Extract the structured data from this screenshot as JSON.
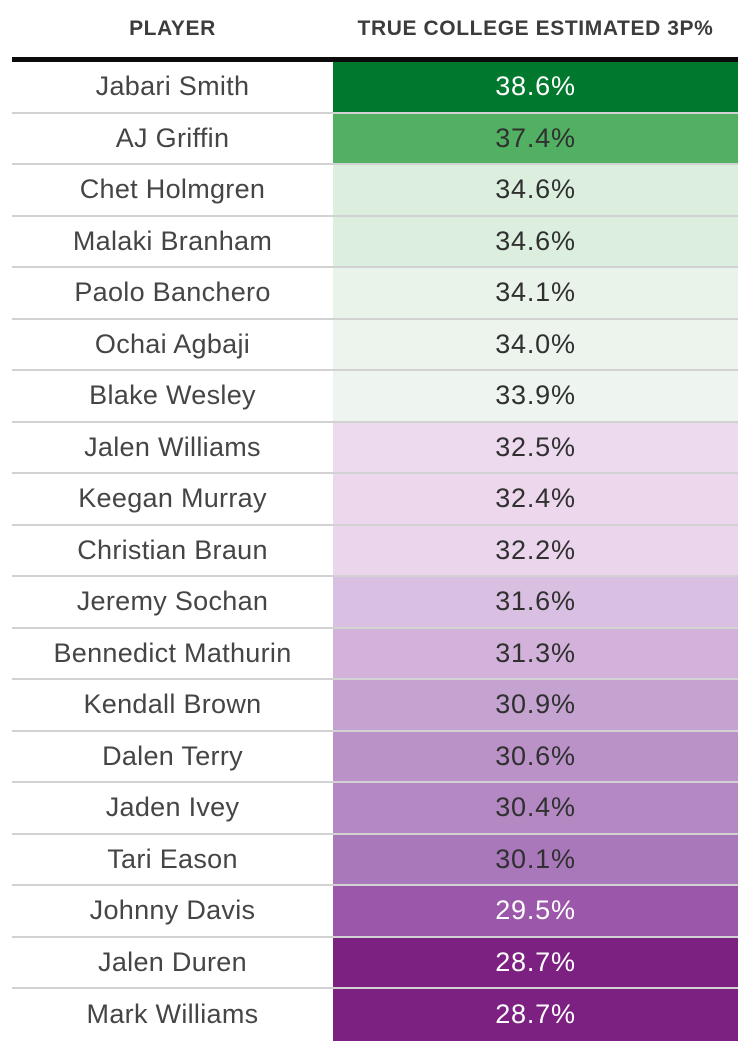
{
  "table": {
    "columns": [
      {
        "label": "PLAYER"
      },
      {
        "label": "TRUE COLLEGE ESTIMATED 3P%"
      }
    ],
    "rows": [
      {
        "player": "Jabari Smith",
        "value": "38.6%",
        "bg": "#00782e",
        "fg": "#ffffff"
      },
      {
        "player": "AJ Griffin",
        "value": "37.4%",
        "bg": "#51b062",
        "fg": "#303030"
      },
      {
        "player": "Chet Holmgren",
        "value": "34.6%",
        "bg": "#dcefde",
        "fg": "#303030"
      },
      {
        "player": "Malaki Branham",
        "value": "34.6%",
        "bg": "#dcefde",
        "fg": "#303030"
      },
      {
        "player": "Paolo Banchero",
        "value": "34.1%",
        "bg": "#eaf3ea",
        "fg": "#303030"
      },
      {
        "player": "Ochai Agbaji",
        "value": "34.0%",
        "bg": "#ecf4ed",
        "fg": "#303030"
      },
      {
        "player": "Blake Wesley",
        "value": "33.9%",
        "bg": "#eef5f1",
        "fg": "#303030"
      },
      {
        "player": "Jalen Williams",
        "value": "32.5%",
        "bg": "#eedaef",
        "fg": "#303030"
      },
      {
        "player": "Keegan Murray",
        "value": "32.4%",
        "bg": "#ecd7ed",
        "fg": "#303030"
      },
      {
        "player": "Christian Braun",
        "value": "32.2%",
        "bg": "#ebd5ec",
        "fg": "#303030"
      },
      {
        "player": "Jeremy Sochan",
        "value": "31.6%",
        "bg": "#d9bfe1",
        "fg": "#303030"
      },
      {
        "player": "Bennedict Mathurin",
        "value": "31.3%",
        "bg": "#d2b2da",
        "fg": "#303030"
      },
      {
        "player": "Kendall Brown",
        "value": "30.9%",
        "bg": "#c5a3d1",
        "fg": "#303030"
      },
      {
        "player": "Dalen Terry",
        "value": "30.6%",
        "bg": "#ba92c8",
        "fg": "#303030"
      },
      {
        "player": "Jaden Ivey",
        "value": "30.4%",
        "bg": "#b489c3",
        "fg": "#303030"
      },
      {
        "player": "Tari Eason",
        "value": "30.1%",
        "bg": "#a878bb",
        "fg": "#303030"
      },
      {
        "player": "Johnny Davis",
        "value": "29.5%",
        "bg": "#9b57a9",
        "fg": "#ffffff"
      },
      {
        "player": "Jalen Duren",
        "value": "28.7%",
        "bg": "#7c2082",
        "fg": "#ffffff"
      },
      {
        "player": "Mark Williams",
        "value": "28.7%",
        "bg": "#7c2082",
        "fg": "#ffffff"
      }
    ]
  },
  "colors": {
    "header_rule": "#0b0b0b",
    "row_divider": "#d2d2d2",
    "scale_high": "#00782e",
    "scale_mid": "#f2f2f2",
    "scale_low": "#7c2082"
  },
  "chart_data": {
    "type": "table",
    "columns": [
      "PLAYER",
      "TRUE COLLEGE ESTIMATED 3P%"
    ],
    "categories": [
      "Jabari Smith",
      "AJ Griffin",
      "Chet Holmgren",
      "Malaki Branham",
      "Paolo Banchero",
      "Ochai Agbaji",
      "Blake Wesley",
      "Jalen Williams",
      "Keegan Murray",
      "Christian Braun",
      "Jeremy Sochan",
      "Bennedict Mathurin",
      "Kendall Brown",
      "Dalen Terry",
      "Jaden Ivey",
      "Tari Eason",
      "Johnny Davis",
      "Jalen Duren",
      "Mark Williams"
    ],
    "values": [
      38.6,
      37.4,
      34.6,
      34.6,
      34.1,
      34.0,
      33.9,
      32.5,
      32.4,
      32.2,
      31.6,
      31.3,
      30.9,
      30.6,
      30.4,
      30.1,
      29.5,
      28.7,
      28.7
    ],
    "value_unit": "%",
    "layout": "cell background encodes value on a diverging green-to-purple scale, sorted descending"
  }
}
